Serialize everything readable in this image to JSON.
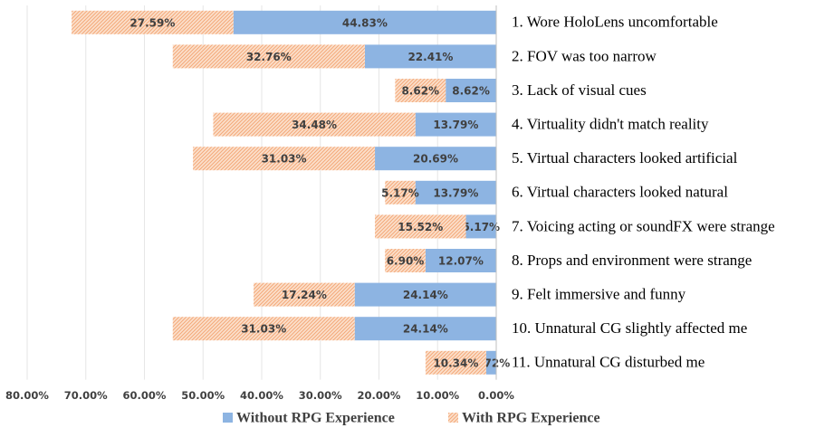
{
  "chart_data": {
    "type": "hbar_stacked",
    "categories": [
      "1. Wore HoloLens uncomfortable",
      "2. FOV was too narrow",
      "3. Lack of  visual cues",
      "4. Virtuality didn't match reality",
      "5. Virtual characters looked artificial",
      "6. Virtual characters looked natural",
      "7. Voicing acting or soundFX were strange",
      "8. Props and environment were strange",
      "9. Felt immersive and funny",
      "10. Unnatural CG slightly affected me",
      "11. Unnatural CG disturbed me"
    ],
    "series": [
      {
        "name": "Without RPG Experience",
        "color": "#8db4e2",
        "values": [
          44.83,
          22.41,
          8.62,
          13.79,
          20.69,
          13.79,
          5.17,
          12.07,
          24.14,
          24.14,
          1.72
        ],
        "value_labels": [
          "44.83%",
          "22.41%",
          "8.62%",
          "13.79%",
          "20.69%",
          "13.79%",
          "5.17%",
          "12.07%",
          "24.14%",
          "24.14%",
          "1.72%"
        ]
      },
      {
        "name": "With RPG Experience",
        "color": "#f8cbad",
        "values": [
          27.59,
          32.76,
          8.62,
          34.48,
          31.03,
          5.17,
          15.52,
          6.9,
          17.24,
          31.03,
          10.34
        ],
        "value_labels": [
          "27.59%",
          "32.76%",
          "8.62%",
          "34.48%",
          "31.03%",
          "5.17%",
          "15.52%",
          "6.90%",
          "17.24%",
          "31.03%",
          "10.34%"
        ]
      }
    ],
    "xlim": [
      0,
      80
    ],
    "x_reversed": true,
    "xticks": [
      {
        "value": 80,
        "label": "80.00%"
      },
      {
        "value": 70,
        "label": "70.00%"
      },
      {
        "value": 60,
        "label": "60.00%"
      },
      {
        "value": 50,
        "label": "50.00%"
      },
      {
        "value": 40,
        "label": "40.00%"
      },
      {
        "value": 30,
        "label": "30.00%"
      },
      {
        "value": 20,
        "label": "20.00%"
      },
      {
        "value": 10,
        "label": "10.00%"
      },
      {
        "value": 0,
        "label": "0.00%"
      }
    ],
    "grid": true,
    "legend": "bottom"
  }
}
